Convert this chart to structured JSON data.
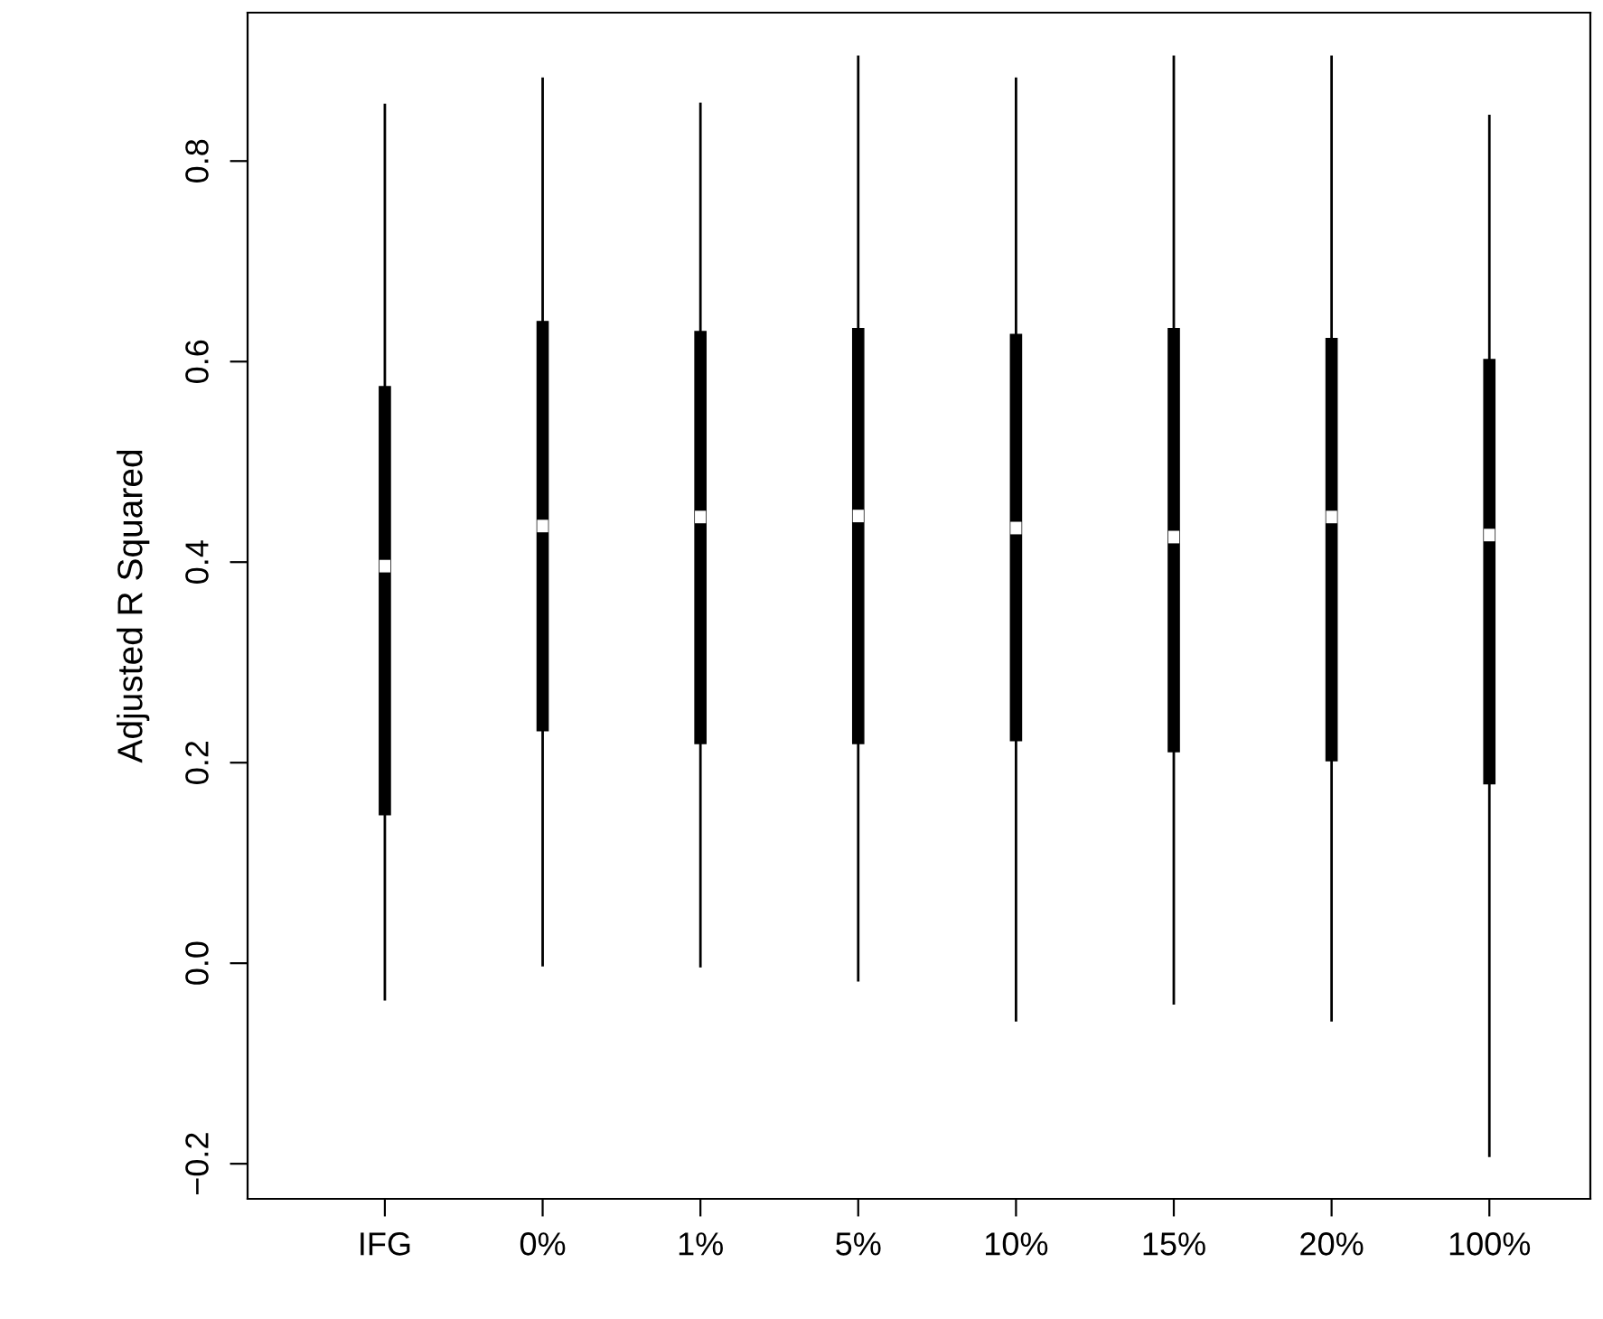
{
  "chart_data": {
    "type": "box",
    "ylabel": "Adjusted R Squared",
    "categories": [
      "IFG",
      "0%",
      "1%",
      "5%",
      "10%",
      "15%",
      "20%",
      "100%"
    ],
    "boxes": [
      {
        "low": -0.036,
        "q1": 0.148,
        "median": 0.396,
        "q3": 0.575,
        "high": 0.856
      },
      {
        "low": -0.002,
        "q1": 0.232,
        "median": 0.436,
        "q3": 0.64,
        "high": 0.882
      },
      {
        "low": -0.003,
        "q1": 0.219,
        "median": 0.445,
        "q3": 0.63,
        "high": 0.857
      },
      {
        "low": -0.017,
        "q1": 0.219,
        "median": 0.446,
        "q3": 0.633,
        "high": 0.904
      },
      {
        "low": -0.057,
        "q1": 0.222,
        "median": 0.434,
        "q3": 0.627,
        "high": 0.882
      },
      {
        "low": -0.04,
        "q1": 0.211,
        "median": 0.425,
        "q3": 0.633,
        "high": 0.904
      },
      {
        "low": -0.057,
        "q1": 0.202,
        "median": 0.445,
        "q3": 0.623,
        "high": 0.904
      },
      {
        "low": -0.192,
        "q1": 0.179,
        "median": 0.427,
        "q3": 0.602,
        "high": 0.845
      }
    ],
    "color": "#000000",
    "ylim": [
      -0.235,
      0.948
    ],
    "yticks": [
      {
        "value": -0.2,
        "label": "−0.2"
      },
      {
        "value": 0,
        "label": "0.0"
      },
      {
        "value": 0.2,
        "label": "0.2"
      },
      {
        "value": 0.4,
        "label": "0.4"
      },
      {
        "value": 0.6,
        "label": "0.6"
      },
      {
        "value": 0.8,
        "label": "0.8"
      }
    ],
    "grid": false,
    "legend": false
  }
}
